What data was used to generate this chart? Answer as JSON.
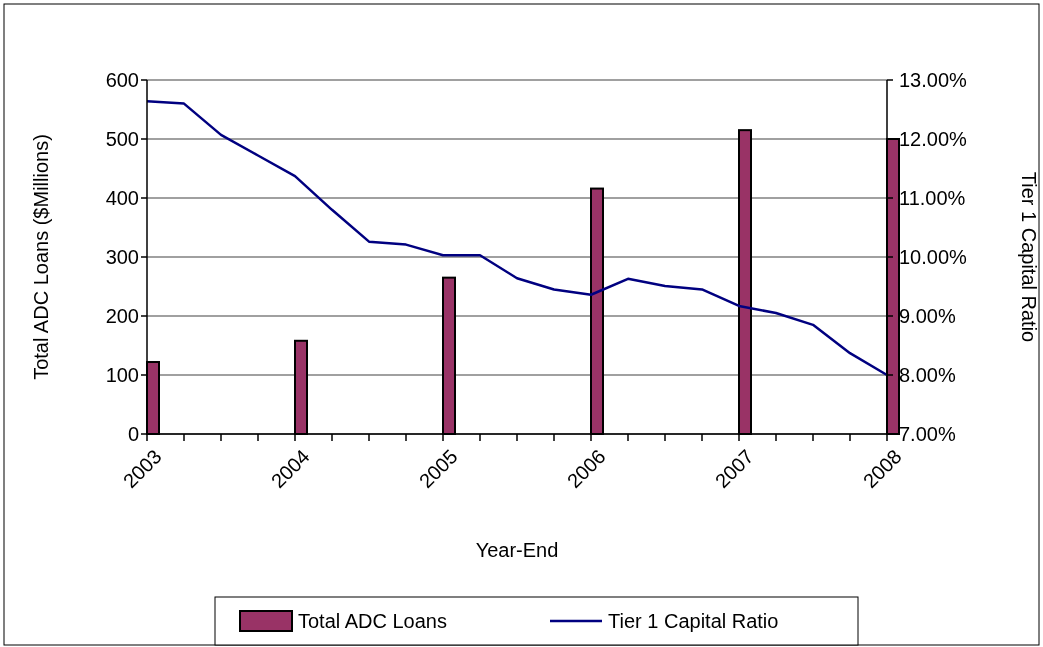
{
  "chart_data": {
    "type": "bar",
    "xlabel": "Year-End",
    "ylabel": "Total ADC Loans ($Millions)",
    "y2label": "Tier 1 Capital Ratio",
    "categories": [
      "2003",
      null,
      null,
      null,
      "2004",
      null,
      null,
      null,
      "2005",
      null,
      null,
      null,
      "2006",
      null,
      null,
      null,
      "2007",
      null,
      null,
      null,
      "2008"
    ],
    "series": [
      {
        "name": "Total ADC Loans",
        "color": "#993366",
        "values": [
          122,
          null,
          null,
          null,
          158,
          null,
          null,
          null,
          265,
          null,
          null,
          null,
          416,
          null,
          null,
          null,
          515,
          null,
          null,
          null,
          500
        ]
      },
      {
        "name": "Tier 1 Capital Ratio",
        "type": "line",
        "axis": "y2",
        "color": "#000080",
        "values": [
          12.64,
          12.6,
          12.07,
          11.72,
          11.37,
          10.8,
          10.26,
          10.21,
          10.03,
          10.03,
          9.64,
          9.45,
          9.36,
          9.63,
          9.51,
          9.45,
          9.17,
          9.05,
          8.85,
          8.37,
          8.0
        ]
      }
    ],
    "ylim": [
      0,
      600
    ],
    "yticks": [
      0,
      100,
      200,
      300,
      400,
      500,
      600
    ],
    "y2lim": [
      7,
      13
    ],
    "y2ticks": [
      {
        "value": 7,
        "label": "7.00%"
      },
      {
        "value": 8,
        "label": "8.00%"
      },
      {
        "value": 9,
        "label": "9.00%"
      },
      {
        "value": 10,
        "label": "10.00%"
      },
      {
        "value": 11,
        "label": "11.00%"
      },
      {
        "value": 12,
        "label": "12.00%"
      },
      {
        "value": 13,
        "label": "13.00%"
      }
    ],
    "grid": "y",
    "legend": "bottom",
    "marker": "none",
    "line_style": "solid"
  }
}
